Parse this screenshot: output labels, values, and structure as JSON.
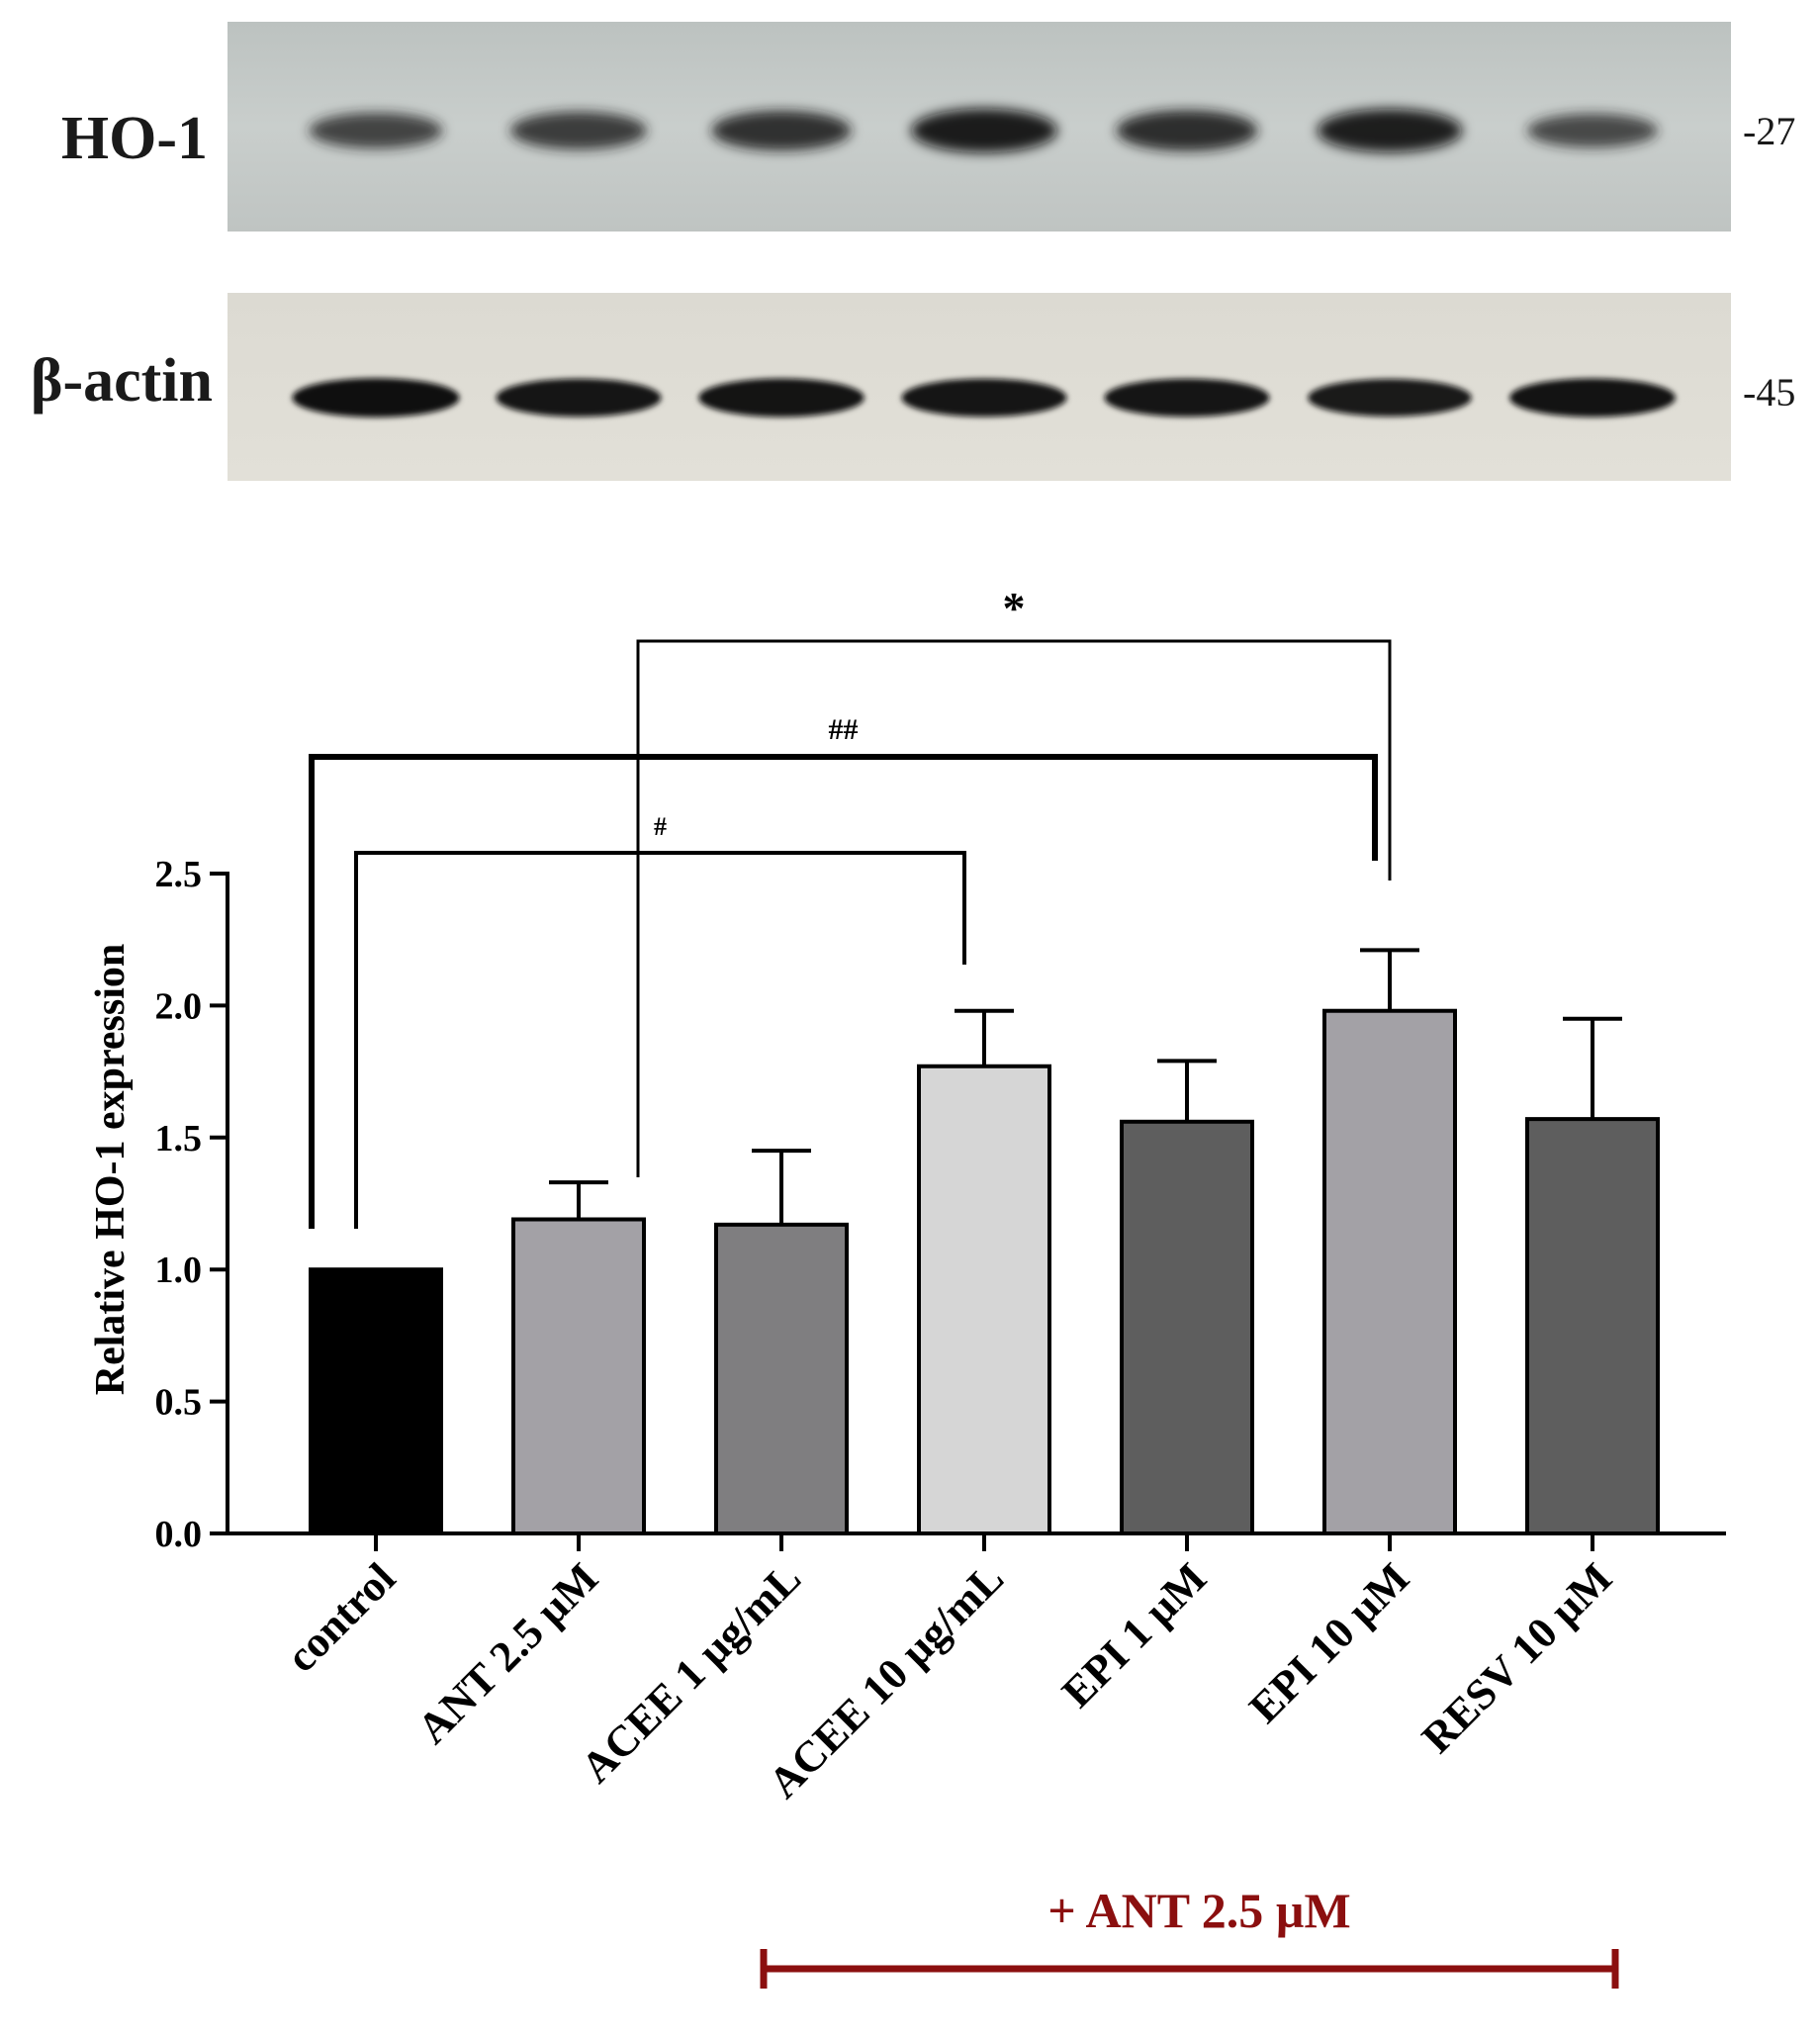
{
  "blots": {
    "ho1": {
      "label": "HO-1",
      "mw": "-27",
      "intensities": [
        0.62,
        0.7,
        0.78,
        0.95,
        0.82,
        0.92,
        0.55
      ]
    },
    "actin": {
      "label": "β-actin",
      "mw": "-45",
      "intensities": [
        0.97,
        0.9,
        0.92,
        0.9,
        0.9,
        0.85,
        0.93
      ]
    }
  },
  "chart_data": {
    "type": "bar",
    "ylabel": "Relative HO-1 expression",
    "ylim": [
      0,
      2.5
    ],
    "yticks": [
      "0.0",
      "0.5",
      "1.0",
      "1.5",
      "2.0",
      "2.5"
    ],
    "categories": [
      "control",
      "ANT 2.5 µM",
      "ACEE 1 µg/mL",
      "ACEE 10 µg/mL",
      "EPI 1 µM",
      "EPI 10 µM",
      "RESV 10 µM"
    ],
    "values": [
      1.0,
      1.19,
      1.17,
      1.77,
      1.56,
      1.98,
      1.57
    ],
    "errors": [
      0,
      0.14,
      0.28,
      0.21,
      0.23,
      0.23,
      0.38
    ],
    "colors": [
      "#000000",
      "#a3a1a6",
      "#7f7e80",
      "#d6d6d6",
      "#5e5e5e",
      "#a3a1a6",
      "#5e5e5e"
    ],
    "significance": [
      {
        "from": 0,
        "to": 3,
        "symbol": "#"
      },
      {
        "from": 0,
        "to": 5,
        "symbol": "##"
      },
      {
        "from": 1,
        "to": 5,
        "symbol": "*"
      }
    ],
    "treatment": {
      "label": "+ ANT 2.5 µM",
      "from": 2,
      "to": 6,
      "color": "#8b0f0f"
    }
  }
}
